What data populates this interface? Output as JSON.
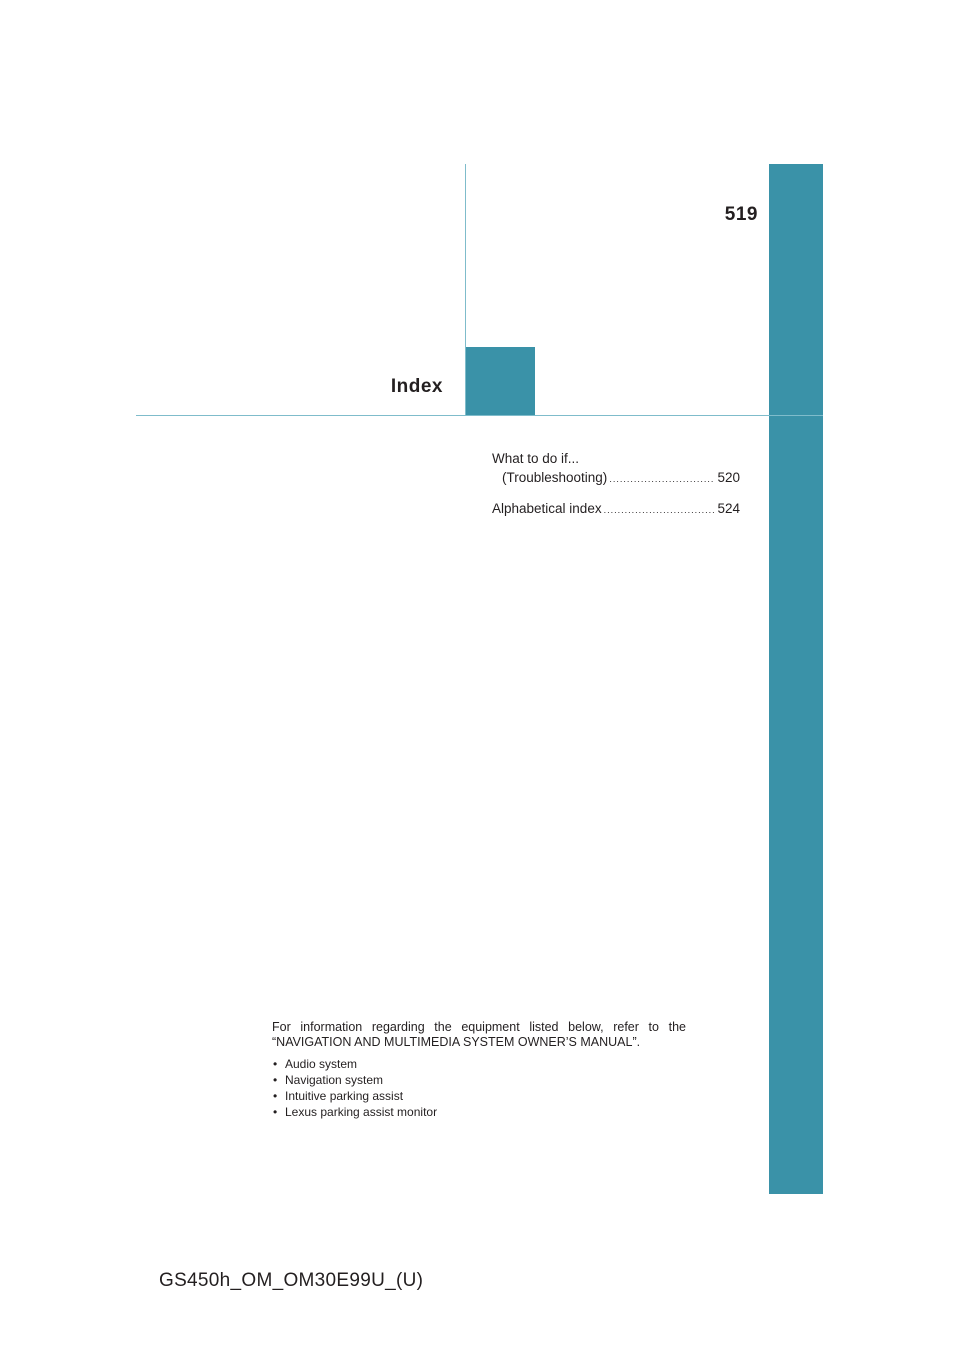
{
  "page": {
    "number": "519",
    "section_title": "Index",
    "accent_color": "#3a92a8"
  },
  "toc": [
    {
      "title": "What to do if...",
      "subtitle": "(Troubleshooting)",
      "page": "520"
    },
    {
      "title": "Alphabetical index",
      "page": "524"
    }
  ],
  "note": {
    "text": "For information regarding the equipment listed below, refer to the “NAVIGATION AND MULTIMEDIA SYSTEM OWNER’S MANUAL”.",
    "items": [
      "Audio system",
      "Navigation system",
      "Intuitive parking assist",
      "Lexus parking assist monitor"
    ]
  },
  "footer": {
    "code": "GS450h_OM_OM30E99U_(U)"
  }
}
